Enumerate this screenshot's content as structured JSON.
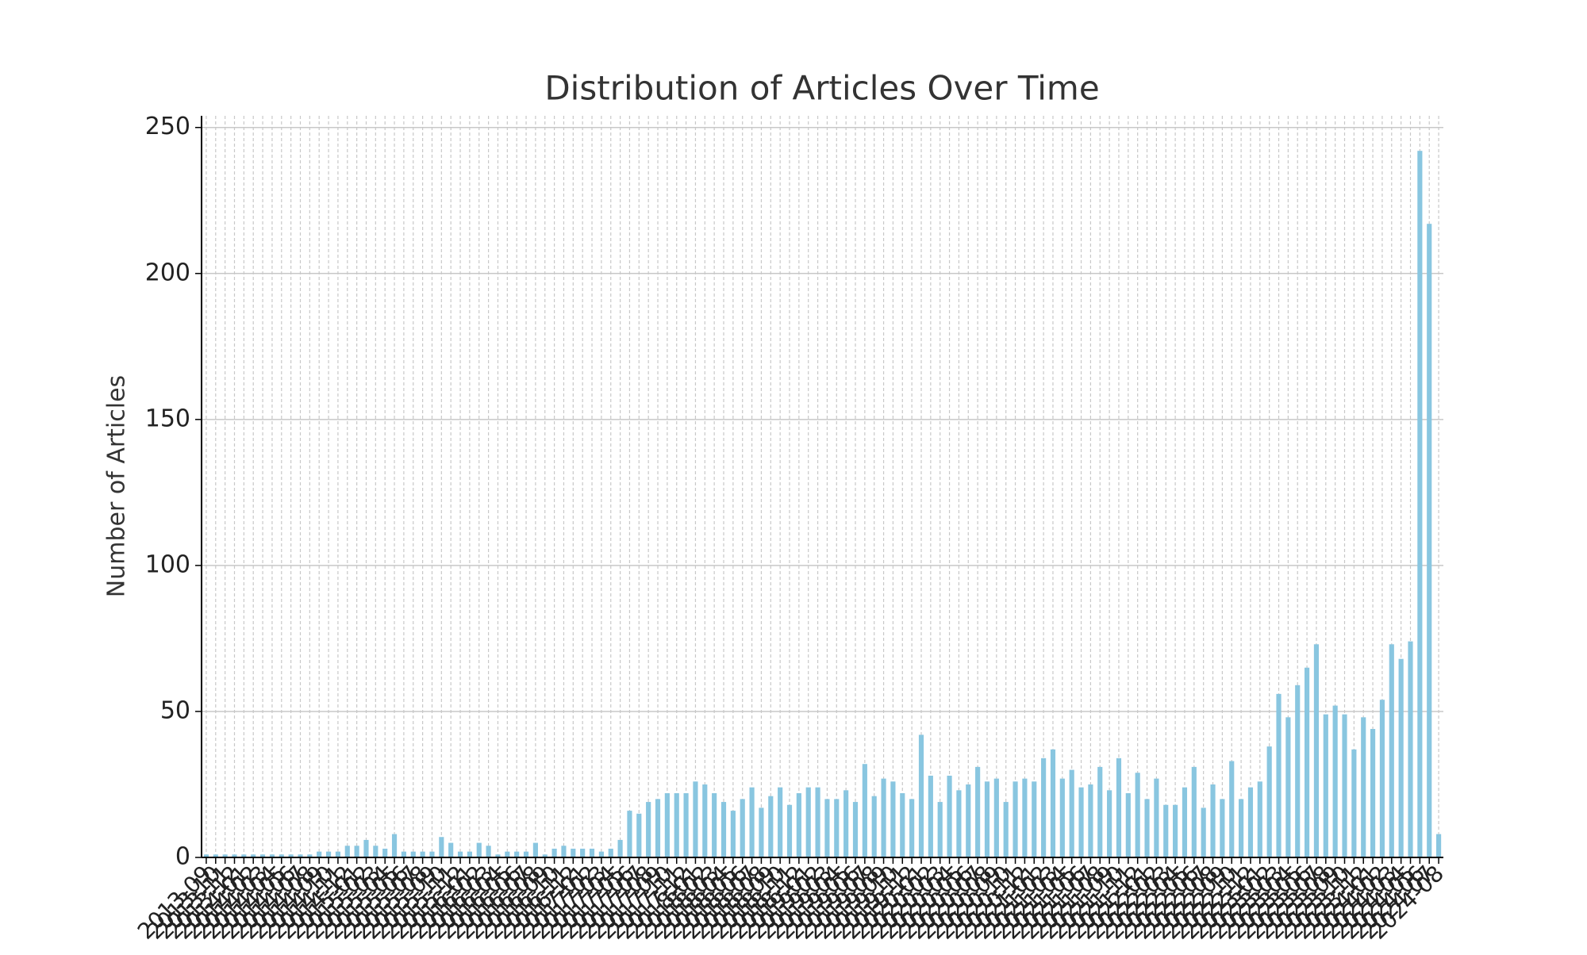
{
  "chart_data": {
    "type": "bar",
    "title": "Distribution of Articles Over Time",
    "y_label": "Number of Articles",
    "categories": [
      "2013-09",
      "2013-10",
      "2013-11",
      "2013-12",
      "2014-01",
      "2014-02",
      "2014-03",
      "2014-04",
      "2014-05",
      "2014-06",
      "2014-07",
      "2014-08",
      "2014-09",
      "2014-10",
      "2014-11",
      "2014-12",
      "2015-01",
      "2015-02",
      "2015-03",
      "2015-04",
      "2015-05",
      "2015-06",
      "2015-07",
      "2015-08",
      "2015-09",
      "2015-10",
      "2015-11",
      "2015-12",
      "2016-01",
      "2016-02",
      "2016-03",
      "2016-04",
      "2016-05",
      "2016-06",
      "2016-07",
      "2016-08",
      "2016-09",
      "2016-10",
      "2016-11",
      "2016-12",
      "2017-01",
      "2017-02",
      "2017-03",
      "2017-04",
      "2017-05",
      "2017-06",
      "2017-07",
      "2017-08",
      "2017-09",
      "2017-10",
      "2017-11",
      "2017-12",
      "2018-01",
      "2018-02",
      "2018-03",
      "2018-04",
      "2018-05",
      "2018-06",
      "2018-07",
      "2018-08",
      "2018-09",
      "2018-10",
      "2018-11",
      "2018-12",
      "2019-01",
      "2019-02",
      "2019-03",
      "2019-04",
      "2019-05",
      "2019-06",
      "2019-07",
      "2019-08",
      "2019-09",
      "2019-10",
      "2019-11",
      "2019-12",
      "2020-01",
      "2020-02",
      "2020-03",
      "2020-04",
      "2020-05",
      "2020-06",
      "2020-07",
      "2020-08",
      "2020-09",
      "2020-10",
      "2020-11",
      "2020-12",
      "2021-01",
      "2021-02",
      "2021-03",
      "2021-04",
      "2021-05",
      "2021-06",
      "2021-07",
      "2021-08",
      "2021-09",
      "2021-10",
      "2021-11",
      "2021-12",
      "2022-01",
      "2022-02",
      "2022-03",
      "2022-04",
      "2022-05",
      "2022-06",
      "2022-07",
      "2022-08",
      "2022-09",
      "2022-10",
      "2022-11",
      "2022-12",
      "2023-01",
      "2023-02",
      "2023-03",
      "2023-04",
      "2023-05",
      "2023-06",
      "2023-07",
      "2023-08",
      "2023-09",
      "2023-10",
      "2023-11",
      "2023-12",
      "2024-01",
      "2024-02",
      "2024-03",
      "2024-04",
      "2024-05",
      "2024-06",
      "2024-07",
      "2024-08"
    ],
    "values": [
      1,
      1,
      1,
      1,
      1,
      1,
      1,
      1,
      1,
      1,
      1,
      1,
      2,
      2,
      2,
      4,
      4,
      6,
      4,
      3,
      8,
      2,
      2,
      2,
      2,
      7,
      5,
      2,
      2,
      5,
      4,
      1,
      2,
      2,
      2,
      5,
      1,
      3,
      4,
      3,
      3,
      3,
      2,
      3,
      6,
      16,
      15,
      19,
      20,
      22,
      22,
      22,
      26,
      25,
      22,
      19,
      16,
      20,
      24,
      17,
      21,
      24,
      18,
      22,
      24,
      24,
      20,
      20,
      23,
      19,
      32,
      21,
      27,
      26,
      22,
      20,
      42,
      28,
      19,
      28,
      23,
      25,
      31,
      26,
      27,
      19,
      26,
      27,
      26,
      34,
      37,
      27,
      30,
      24,
      25,
      31,
      23,
      34,
      22,
      29,
      20,
      27,
      18,
      18,
      24,
      31,
      17,
      25,
      20,
      33,
      20,
      24,
      26,
      38,
      56,
      48,
      59,
      65,
      73,
      49,
      52,
      49,
      37,
      48,
      44,
      54,
      73,
      68,
      74,
      242,
      217,
      8
    ],
    "color": "#89c6e0",
    "ylim": [
      0,
      254
    ],
    "yticks": [
      0,
      50,
      100,
      150,
      200,
      250
    ],
    "grid": true
  }
}
